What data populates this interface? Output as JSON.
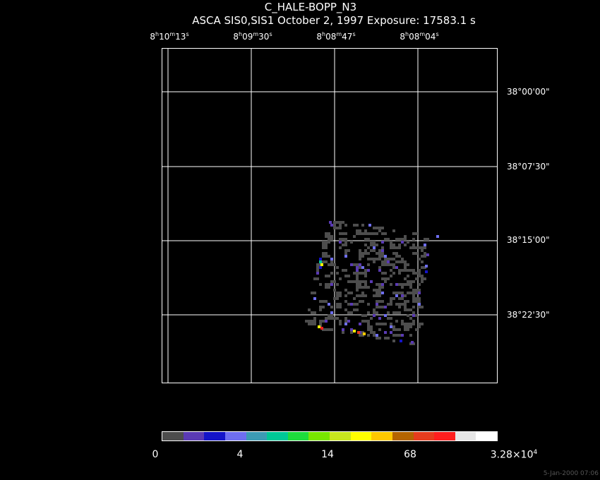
{
  "title": "C_HALE-BOPP_N3",
  "subtitle": "ASCA SIS0,SIS1 October 2, 1997 Exposure: 17583.1 s",
  "ra_ticks": [
    {
      "h": "8",
      "m": "10",
      "s": "13"
    },
    {
      "h": "8",
      "m": "09",
      "s": "30"
    },
    {
      "h": "8",
      "m": "08",
      "s": "47"
    },
    {
      "h": "8",
      "m": "08",
      "s": "04"
    }
  ],
  "dec_ticks": [
    "38°00'00\"",
    "38°07'30\"",
    "38°15'00\"",
    "38°22'30\""
  ],
  "colorbar": {
    "colors": [
      "#4d4d4d",
      "#5a3ab4",
      "#1414c8",
      "#6e6ef0",
      "#3c9bb4",
      "#00c896",
      "#1edc3c",
      "#78e600",
      "#c8e61e",
      "#ffff00",
      "#ffc800",
      "#b46400",
      "#e63c1e",
      "#ff1e1e",
      "#e6e6e6",
      "#ffffff"
    ],
    "labels": [
      "0",
      "4",
      "14",
      "68"
    ],
    "max_label_base": "3.28×10",
    "max_label_exp": "4"
  },
  "timestamp": "5-Jan-2000 07:06"
}
